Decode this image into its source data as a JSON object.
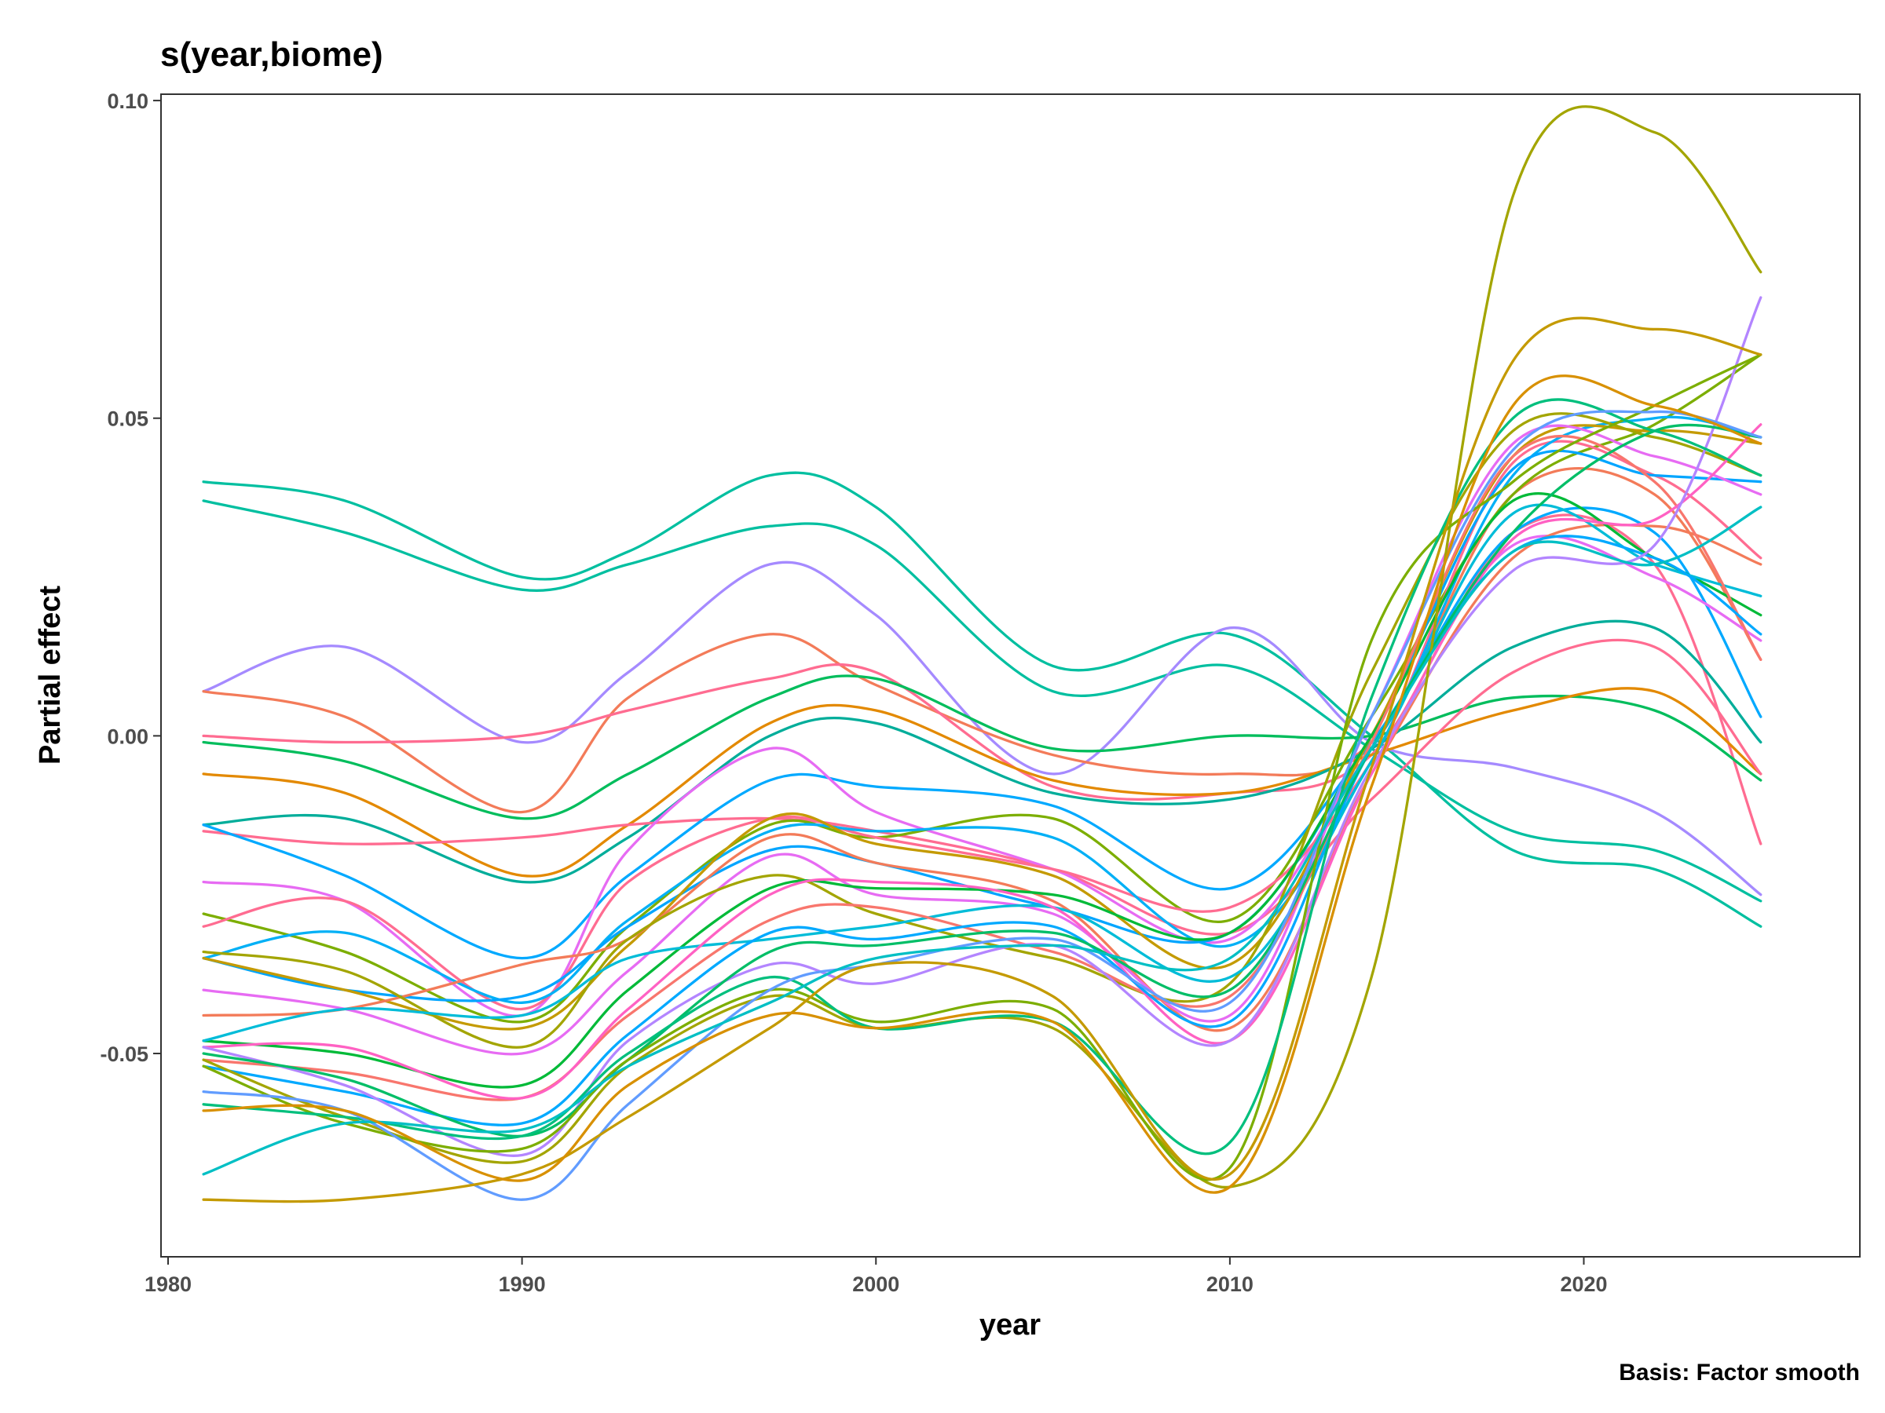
{
  "chart_data": {
    "type": "line",
    "title": "s(year,biome)",
    "xlabel": "year",
    "ylabel": "Partial effect",
    "caption": "Basis: Factor smooth",
    "xlim": [
      1979.8,
      2027.8
    ],
    "ylim": [
      -0.082,
      0.101
    ],
    "xticks": [
      1980,
      1990,
      2000,
      2010,
      2020
    ],
    "yticks": [
      0.1,
      0.05,
      0.0,
      -0.05
    ],
    "ytick_labels": [
      "0.10",
      "0.05",
      "0.00",
      "-0.05"
    ],
    "grid": false,
    "legend": "none",
    "x": [
      1981,
      1985,
      1990,
      1993,
      1997,
      2000,
      2005,
      2010,
      2014,
      2018,
      2022,
      2025
    ],
    "series": [
      {
        "color": "#00BFA0",
        "values": [
          0.04,
          0.037,
          0.025,
          0.029,
          0.041,
          0.036,
          0.011,
          0.016,
          0.0,
          -0.018,
          -0.021,
          -0.03
        ]
      },
      {
        "color": "#00BFA0",
        "values": [
          0.037,
          0.032,
          0.023,
          0.027,
          0.033,
          0.03,
          0.007,
          0.011,
          -0.002,
          -0.015,
          -0.018,
          -0.026
        ]
      },
      {
        "color": "#A58AFF",
        "values": [
          0.007,
          0.014,
          -0.001,
          0.01,
          0.027,
          0.019,
          -0.006,
          0.017,
          -0.001,
          -0.005,
          -0.012,
          -0.025
        ]
      },
      {
        "color": "#F37B59",
        "values": [
          0.007,
          0.003,
          -0.012,
          0.006,
          0.016,
          0.008,
          -0.003,
          -0.006,
          -0.001,
          0.038,
          0.038,
          0.012
        ]
      },
      {
        "color": "#FF6C91",
        "values": [
          0.0,
          -0.001,
          0.0,
          0.004,
          0.009,
          0.01,
          -0.008,
          -0.009,
          -0.003,
          0.032,
          0.027,
          -0.017
        ]
      },
      {
        "color": "#00BD5C",
        "values": [
          -0.001,
          -0.004,
          -0.013,
          -0.006,
          0.006,
          0.009,
          -0.002,
          0.0,
          0.0,
          0.006,
          0.004,
          -0.007
        ]
      },
      {
        "color": "#E38900",
        "values": [
          -0.006,
          -0.009,
          -0.022,
          -0.014,
          0.002,
          0.004,
          -0.007,
          -0.009,
          -0.003,
          0.004,
          0.007,
          -0.006
        ]
      },
      {
        "color": "#00AD9A",
        "values": [
          -0.014,
          -0.013,
          -0.023,
          -0.016,
          0.0,
          0.002,
          -0.009,
          -0.01,
          -0.002,
          0.014,
          0.017,
          -0.001
        ]
      },
      {
        "color": "#FF6C91",
        "values": [
          -0.015,
          -0.017,
          -0.016,
          -0.014,
          -0.013,
          -0.015,
          -0.021,
          -0.031,
          -0.01,
          0.01,
          0.014,
          -0.006
        ]
      },
      {
        "color": "#00A9FF",
        "values": [
          -0.014,
          -0.022,
          -0.035,
          -0.022,
          -0.007,
          -0.008,
          -0.011,
          -0.024,
          -0.001,
          0.032,
          0.032,
          0.003
        ]
      },
      {
        "color": "#E76BF3",
        "values": [
          -0.023,
          -0.026,
          -0.044,
          -0.018,
          -0.002,
          -0.012,
          -0.021,
          -0.032,
          -0.002,
          0.03,
          0.025,
          0.015
        ]
      },
      {
        "color": "#7CAE00",
        "values": [
          -0.028,
          -0.034,
          -0.045,
          -0.03,
          -0.014,
          -0.016,
          -0.013,
          -0.029,
          0.003,
          0.038,
          0.049,
          0.06
        ]
      },
      {
        "color": "#FF6C91",
        "values": [
          -0.03,
          -0.026,
          -0.043,
          -0.023,
          -0.013,
          -0.016,
          -0.021,
          -0.027,
          -0.004,
          0.043,
          0.041,
          0.028
        ]
      },
      {
        "color": "#00B0F6",
        "values": [
          -0.035,
          -0.031,
          -0.042,
          -0.029,
          -0.015,
          -0.015,
          -0.016,
          -0.033,
          -0.004,
          0.041,
          0.05,
          0.047
        ]
      },
      {
        "color": "#00A5FF",
        "values": [
          -0.035,
          -0.04,
          -0.041,
          -0.03,
          -0.018,
          -0.02,
          -0.027,
          -0.031,
          0.0,
          0.042,
          0.041,
          0.04
        ]
      },
      {
        "color": "#C49A00",
        "values": [
          -0.035,
          -0.04,
          -0.046,
          -0.033,
          -0.013,
          -0.017,
          -0.022,
          -0.036,
          0.0,
          0.044,
          0.048,
          0.046
        ]
      },
      {
        "color": "#F37B59",
        "values": [
          -0.044,
          -0.043,
          -0.036,
          -0.032,
          -0.016,
          -0.02,
          -0.026,
          -0.046,
          -0.006,
          0.028,
          0.033,
          0.027
        ]
      },
      {
        "color": "#E76BF3",
        "values": [
          -0.04,
          -0.043,
          -0.05,
          -0.037,
          -0.019,
          -0.025,
          -0.028,
          -0.044,
          0.003,
          0.046,
          0.044,
          0.038
        ]
      },
      {
        "color": "#A3A500",
        "values": [
          -0.034,
          -0.037,
          -0.049,
          -0.032,
          -0.022,
          -0.028,
          -0.035,
          -0.039,
          0.01,
          0.048,
          0.047,
          0.041
        ]
      },
      {
        "color": "#00BA38",
        "values": [
          -0.048,
          -0.05,
          -0.055,
          -0.04,
          -0.024,
          -0.024,
          -0.025,
          -0.031,
          0.0,
          0.037,
          0.028,
          0.019
        ]
      },
      {
        "color": "#00BCD8",
        "values": [
          -0.048,
          -0.043,
          -0.044,
          -0.035,
          -0.032,
          -0.03,
          -0.027,
          -0.038,
          -0.004,
          0.035,
          0.027,
          0.022
        ]
      },
      {
        "color": "#F8766D",
        "values": [
          -0.051,
          -0.053,
          -0.057,
          -0.044,
          -0.029,
          -0.027,
          -0.034,
          -0.041,
          -0.001,
          0.044,
          0.04,
          0.012
        ]
      },
      {
        "color": "#FF61C3",
        "values": [
          -0.049,
          -0.049,
          -0.057,
          -0.043,
          -0.025,
          -0.023,
          -0.027,
          -0.048,
          -0.006,
          0.031,
          0.034,
          0.049
        ]
      },
      {
        "color": "#00A9FF",
        "values": [
          -0.052,
          -0.056,
          -0.061,
          -0.047,
          -0.031,
          -0.032,
          -0.03,
          -0.045,
          -0.002,
          0.029,
          0.028,
          0.016
        ]
      },
      {
        "color": "#B385FF",
        "values": [
          -0.049,
          -0.055,
          -0.066,
          -0.048,
          -0.036,
          -0.039,
          -0.033,
          -0.048,
          -0.005,
          0.026,
          0.03,
          0.069
        ]
      },
      {
        "color": "#00BE67",
        "values": [
          -0.05,
          -0.054,
          -0.063,
          -0.051,
          -0.034,
          -0.033,
          -0.031,
          -0.04,
          -0.002,
          0.032,
          0.048,
          0.047
        ]
      },
      {
        "color": "#A3A500",
        "values": [
          -0.051,
          -0.06,
          -0.067,
          -0.052,
          -0.041,
          -0.046,
          -0.046,
          -0.071,
          -0.038,
          0.085,
          0.095,
          0.073
        ]
      },
      {
        "color": "#7CAE00",
        "values": [
          -0.052,
          -0.061,
          -0.065,
          -0.051,
          -0.04,
          -0.045,
          -0.043,
          -0.068,
          0.015,
          0.04,
          0.052,
          0.06
        ]
      },
      {
        "color": "#00BF7D",
        "values": [
          -0.058,
          -0.06,
          -0.063,
          -0.05,
          -0.038,
          -0.046,
          -0.045,
          -0.064,
          0.006,
          0.05,
          0.048,
          0.041
        ]
      },
      {
        "color": "#619CFF",
        "values": [
          -0.056,
          -0.059,
          -0.073,
          -0.058,
          -0.04,
          -0.036,
          -0.032,
          -0.042,
          0.003,
          0.045,
          0.051,
          0.047
        ]
      },
      {
        "color": "#00BFC4",
        "values": [
          -0.069,
          -0.061,
          -0.062,
          -0.052,
          -0.042,
          -0.035,
          -0.033,
          -0.035,
          -0.002,
          0.029,
          0.027,
          0.036
        ]
      },
      {
        "color": "#C49A00",
        "values": [
          -0.073,
          -0.073,
          -0.069,
          -0.06,
          -0.046,
          -0.036,
          -0.041,
          -0.069,
          -0.005,
          0.059,
          0.064,
          0.06
        ]
      },
      {
        "color": "#D89000",
        "values": [
          -0.059,
          -0.059,
          -0.07,
          -0.055,
          -0.044,
          -0.046,
          -0.045,
          -0.071,
          -0.008,
          0.052,
          0.052,
          0.046
        ]
      }
    ]
  }
}
